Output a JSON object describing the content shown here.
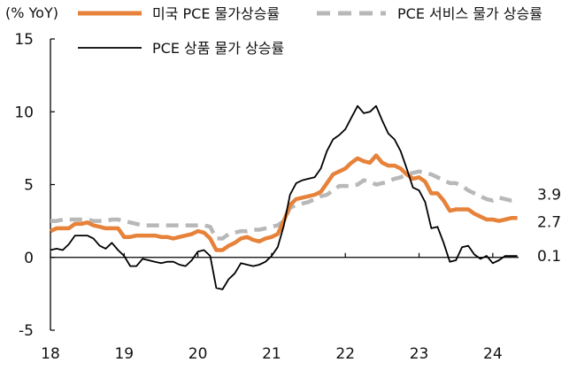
{
  "chart_data": {
    "type": "line",
    "unit_label": "(% YoY)",
    "xlim": [
      2018.0,
      2024.35
    ],
    "ylim": [
      -5,
      15
    ],
    "x_ticks": [
      {
        "value": 2018,
        "label": "18"
      },
      {
        "value": 2019,
        "label": "19"
      },
      {
        "value": 2020,
        "label": "20"
      },
      {
        "value": 2021,
        "label": "21"
      },
      {
        "value": 2022,
        "label": "22"
      },
      {
        "value": 2023,
        "label": "23"
      },
      {
        "value": 2024,
        "label": "24"
      }
    ],
    "y_ticks": [
      {
        "value": 15,
        "label": "15"
      },
      {
        "value": 10,
        "label": "10"
      },
      {
        "value": 5,
        "label": "5"
      },
      {
        "value": 0,
        "label": "0"
      },
      {
        "value": -5,
        "label": "-5"
      }
    ],
    "zero_line": true,
    "grid": false,
    "series": [
      {
        "name": "미국 PCE 물가상승률",
        "color": "#E6823A",
        "style": "solid-thick",
        "end_label": "2.7",
        "points": [
          [
            2018.0,
            1.8
          ],
          [
            2018.083,
            2.0
          ],
          [
            2018.167,
            2.0
          ],
          [
            2018.25,
            2.0
          ],
          [
            2018.333,
            2.3
          ],
          [
            2018.417,
            2.3
          ],
          [
            2018.5,
            2.4
          ],
          [
            2018.583,
            2.2
          ],
          [
            2018.667,
            2.1
          ],
          [
            2018.75,
            2.0
          ],
          [
            2018.833,
            2.0
          ],
          [
            2018.917,
            2.0
          ],
          [
            2019.0,
            1.4
          ],
          [
            2019.083,
            1.4
          ],
          [
            2019.167,
            1.5
          ],
          [
            2019.25,
            1.5
          ],
          [
            2019.333,
            1.5
          ],
          [
            2019.417,
            1.5
          ],
          [
            2019.5,
            1.4
          ],
          [
            2019.583,
            1.4
          ],
          [
            2019.667,
            1.3
          ],
          [
            2019.75,
            1.4
          ],
          [
            2019.833,
            1.5
          ],
          [
            2019.917,
            1.6
          ],
          [
            2020.0,
            1.8
          ],
          [
            2020.083,
            1.7
          ],
          [
            2020.167,
            1.3
          ],
          [
            2020.25,
            0.5
          ],
          [
            2020.333,
            0.5
          ],
          [
            2020.417,
            0.8
          ],
          [
            2020.5,
            1.0
          ],
          [
            2020.583,
            1.3
          ],
          [
            2020.667,
            1.4
          ],
          [
            2020.75,
            1.2
          ],
          [
            2020.833,
            1.1
          ],
          [
            2020.917,
            1.3
          ],
          [
            2021.0,
            1.4
          ],
          [
            2021.083,
            1.6
          ],
          [
            2021.167,
            2.5
          ],
          [
            2021.25,
            3.6
          ],
          [
            2021.333,
            4.0
          ],
          [
            2021.417,
            4.1
          ],
          [
            2021.5,
            4.2
          ],
          [
            2021.583,
            4.3
          ],
          [
            2021.667,
            4.5
          ],
          [
            2021.75,
            5.1
          ],
          [
            2021.833,
            5.7
          ],
          [
            2021.917,
            5.9
          ],
          [
            2022.0,
            6.1
          ],
          [
            2022.083,
            6.5
          ],
          [
            2022.167,
            6.8
          ],
          [
            2022.25,
            6.6
          ],
          [
            2022.333,
            6.5
          ],
          [
            2022.417,
            7.0
          ],
          [
            2022.5,
            6.5
          ],
          [
            2022.583,
            6.3
          ],
          [
            2022.667,
            6.3
          ],
          [
            2022.75,
            6.1
          ],
          [
            2022.833,
            5.7
          ],
          [
            2022.917,
            5.4
          ],
          [
            2023.0,
            5.5
          ],
          [
            2023.083,
            5.2
          ],
          [
            2023.167,
            4.4
          ],
          [
            2023.25,
            4.4
          ],
          [
            2023.333,
            3.9
          ],
          [
            2023.417,
            3.2
          ],
          [
            2023.5,
            3.3
          ],
          [
            2023.583,
            3.3
          ],
          [
            2023.667,
            3.3
          ],
          [
            2023.75,
            3.0
          ],
          [
            2023.833,
            2.8
          ],
          [
            2023.917,
            2.6
          ],
          [
            2024.0,
            2.6
          ],
          [
            2024.083,
            2.5
          ],
          [
            2024.167,
            2.6
          ],
          [
            2024.25,
            2.7
          ],
          [
            2024.333,
            2.7
          ]
        ]
      },
      {
        "name": "PCE 서비스 물가 상승률",
        "color": "#B8B8B8",
        "style": "dashed-thick",
        "end_label": "3.9",
        "points": [
          [
            2018.0,
            2.5
          ],
          [
            2018.083,
            2.5
          ],
          [
            2018.167,
            2.6
          ],
          [
            2018.25,
            2.6
          ],
          [
            2018.333,
            2.6
          ],
          [
            2018.417,
            2.6
          ],
          [
            2018.5,
            2.6
          ],
          [
            2018.583,
            2.5
          ],
          [
            2018.667,
            2.5
          ],
          [
            2018.75,
            2.5
          ],
          [
            2018.833,
            2.6
          ],
          [
            2018.917,
            2.6
          ],
          [
            2019.0,
            2.5
          ],
          [
            2019.083,
            2.4
          ],
          [
            2019.167,
            2.3
          ],
          [
            2019.25,
            2.2
          ],
          [
            2019.333,
            2.2
          ],
          [
            2019.417,
            2.2
          ],
          [
            2019.5,
            2.2
          ],
          [
            2019.583,
            2.2
          ],
          [
            2019.667,
            2.2
          ],
          [
            2019.75,
            2.2
          ],
          [
            2019.833,
            2.2
          ],
          [
            2019.917,
            2.2
          ],
          [
            2020.0,
            2.2
          ],
          [
            2020.083,
            2.2
          ],
          [
            2020.167,
            2.1
          ],
          [
            2020.25,
            1.3
          ],
          [
            2020.333,
            1.3
          ],
          [
            2020.417,
            1.6
          ],
          [
            2020.5,
            1.7
          ],
          [
            2020.583,
            1.8
          ],
          [
            2020.667,
            1.8
          ],
          [
            2020.75,
            1.9
          ],
          [
            2020.833,
            1.9
          ],
          [
            2020.917,
            2.0
          ],
          [
            2021.0,
            2.1
          ],
          [
            2021.083,
            2.2
          ],
          [
            2021.167,
            2.5
          ],
          [
            2021.25,
            3.4
          ],
          [
            2021.333,
            3.6
          ],
          [
            2021.417,
            3.7
          ],
          [
            2021.5,
            3.8
          ],
          [
            2021.583,
            4.0
          ],
          [
            2021.667,
            4.2
          ],
          [
            2021.75,
            4.3
          ],
          [
            2021.833,
            4.6
          ],
          [
            2021.917,
            4.9
          ],
          [
            2022.0,
            4.9
          ],
          [
            2022.083,
            4.9
          ],
          [
            2022.167,
            5.0
          ],
          [
            2022.25,
            5.3
          ],
          [
            2022.333,
            5.2
          ],
          [
            2022.417,
            5.0
          ],
          [
            2022.5,
            5.1
          ],
          [
            2022.583,
            5.2
          ],
          [
            2022.667,
            5.4
          ],
          [
            2022.75,
            5.5
          ],
          [
            2022.833,
            5.7
          ],
          [
            2022.917,
            5.8
          ],
          [
            2023.0,
            5.9
          ],
          [
            2023.083,
            5.8
          ],
          [
            2023.167,
            5.7
          ],
          [
            2023.25,
            5.5
          ],
          [
            2023.333,
            5.3
          ],
          [
            2023.417,
            5.1
          ],
          [
            2023.5,
            5.1
          ],
          [
            2023.583,
            4.9
          ],
          [
            2023.667,
            4.6
          ],
          [
            2023.75,
            4.4
          ],
          [
            2023.833,
            4.2
          ],
          [
            2023.917,
            4.0
          ],
          [
            2024.0,
            3.9
          ],
          [
            2024.083,
            4.1
          ],
          [
            2024.167,
            4.0
          ],
          [
            2024.25,
            3.9
          ],
          [
            2024.333,
            3.9
          ]
        ]
      },
      {
        "name": "PCE 상품 물가 상승률",
        "color": "#000000",
        "style": "solid-thin",
        "end_label": "0.1",
        "points": [
          [
            2018.0,
            0.5
          ],
          [
            2018.083,
            0.6
          ],
          [
            2018.167,
            0.5
          ],
          [
            2018.25,
            0.9
          ],
          [
            2018.333,
            1.5
          ],
          [
            2018.417,
            1.5
          ],
          [
            2018.5,
            1.5
          ],
          [
            2018.583,
            1.3
          ],
          [
            2018.667,
            0.8
          ],
          [
            2018.75,
            0.6
          ],
          [
            2018.833,
            1.0
          ],
          [
            2018.917,
            0.5
          ],
          [
            2019.0,
            0.1
          ],
          [
            2019.083,
            -0.6
          ],
          [
            2019.167,
            -0.6
          ],
          [
            2019.25,
            -0.1
          ],
          [
            2019.333,
            -0.2
          ],
          [
            2019.417,
            -0.3
          ],
          [
            2019.5,
            -0.4
          ],
          [
            2019.583,
            -0.3
          ],
          [
            2019.667,
            -0.3
          ],
          [
            2019.75,
            -0.5
          ],
          [
            2019.833,
            -0.6
          ],
          [
            2019.917,
            -0.2
          ],
          [
            2020.0,
            0.4
          ],
          [
            2020.083,
            0.5
          ],
          [
            2020.167,
            0.1
          ],
          [
            2020.25,
            -2.1
          ],
          [
            2020.333,
            -2.2
          ],
          [
            2020.417,
            -1.5
          ],
          [
            2020.5,
            -1.1
          ],
          [
            2020.583,
            -0.4
          ],
          [
            2020.667,
            -0.5
          ],
          [
            2020.75,
            -0.6
          ],
          [
            2020.833,
            -0.5
          ],
          [
            2020.917,
            -0.3
          ],
          [
            2021.0,
            0.1
          ],
          [
            2021.083,
            0.7
          ],
          [
            2021.167,
            2.2
          ],
          [
            2021.25,
            4.3
          ],
          [
            2021.333,
            5.1
          ],
          [
            2021.417,
            5.3
          ],
          [
            2021.5,
            5.4
          ],
          [
            2021.583,
            5.5
          ],
          [
            2021.667,
            6.1
          ],
          [
            2021.75,
            7.3
          ],
          [
            2021.833,
            8.1
          ],
          [
            2021.917,
            8.4
          ],
          [
            2022.0,
            8.8
          ],
          [
            2022.083,
            9.6
          ],
          [
            2022.167,
            10.4
          ],
          [
            2022.25,
            9.9
          ],
          [
            2022.333,
            10.0
          ],
          [
            2022.417,
            10.4
          ],
          [
            2022.5,
            9.4
          ],
          [
            2022.583,
            8.5
          ],
          [
            2022.667,
            8.1
          ],
          [
            2022.75,
            7.3
          ],
          [
            2022.833,
            6.1
          ],
          [
            2022.917,
            4.8
          ],
          [
            2023.0,
            4.6
          ],
          [
            2023.083,
            3.8
          ],
          [
            2023.167,
            2.0
          ],
          [
            2023.25,
            2.1
          ],
          [
            2023.333,
            1.0
          ],
          [
            2023.417,
            -0.3
          ],
          [
            2023.5,
            -0.2
          ],
          [
            2023.583,
            0.7
          ],
          [
            2023.667,
            0.8
          ],
          [
            2023.75,
            0.2
          ],
          [
            2023.833,
            -0.1
          ],
          [
            2023.917,
            0.1
          ],
          [
            2024.0,
            -0.4
          ],
          [
            2024.083,
            -0.2
          ],
          [
            2024.167,
            0.1
          ],
          [
            2024.25,
            0.1
          ],
          [
            2024.333,
            0.1
          ]
        ]
      }
    ]
  }
}
